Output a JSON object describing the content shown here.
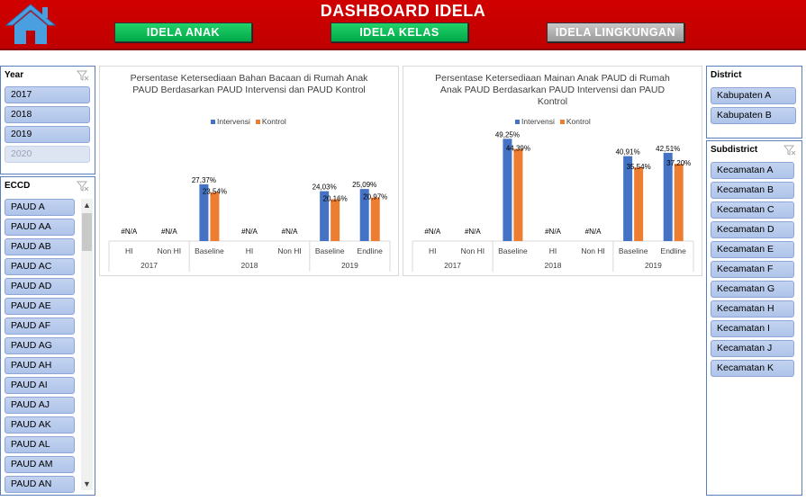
{
  "header": {
    "title": "DASHBOARD IDELA",
    "nav": [
      {
        "label": "IDELA ANAK",
        "style": "green"
      },
      {
        "label": "IDELA KELAS",
        "style": "green"
      },
      {
        "label": "IDELA LINGKUNGAN",
        "style": "grey"
      }
    ]
  },
  "colors": {
    "intervensi": "#4472c4",
    "kontrol": "#ed7d31",
    "header": "#c00000"
  },
  "year_slicer": {
    "title": "Year",
    "items": [
      {
        "label": "2017",
        "enabled": true
      },
      {
        "label": "2018",
        "enabled": true
      },
      {
        "label": "2019",
        "enabled": true
      },
      {
        "label": "2020",
        "enabled": false
      }
    ]
  },
  "eccd_slicer": {
    "title": "ECCD",
    "items": [
      "PAUD A",
      "PAUD AA",
      "PAUD AB",
      "PAUD AC",
      "PAUD AD",
      "PAUD AE",
      "PAUD AF",
      "PAUD AG",
      "PAUD AH",
      "PAUD AI",
      "PAUD AJ",
      "PAUD AK",
      "PAUD AL",
      "PAUD AM",
      "PAUD AN"
    ]
  },
  "district_slicer": {
    "title": "District",
    "items": [
      "Kabupaten A",
      "Kabupaten B"
    ]
  },
  "subdistrict_slicer": {
    "title": "Subdistrict",
    "items": [
      "Kecamatan A",
      "Kecamatan B",
      "Kecamatan C",
      "Kecamatan D",
      "Kecamatan E",
      "Kecamatan F",
      "Kecamatan G",
      "Kecamatan H",
      "Kecamatan I",
      "Kecamatan J",
      "Kecamatan K"
    ]
  },
  "chart_data": [
    {
      "type": "bar",
      "title": "Persentase Ketersediaan Bahan Bacaan di Rumah Anak PAUD Berdasarkan PAUD Intervensi dan PAUD Kontrol",
      "legend": [
        "Intervensi",
        "Kontrol"
      ],
      "groups": [
        {
          "year": "2017",
          "categories": [
            "HI",
            "Non HI"
          ]
        },
        {
          "year": "2018",
          "categories": [
            "Baseline",
            "HI",
            "Non HI"
          ]
        },
        {
          "year": "2019",
          "categories": [
            "Baseline",
            "Endline"
          ]
        }
      ],
      "categories": [
        "HI",
        "Non HI",
        "Baseline",
        "HI",
        "Non HI",
        "Baseline",
        "Endline"
      ],
      "series": [
        {
          "name": "Intervensi",
          "values": [
            null,
            null,
            27.37,
            null,
            null,
            24.03,
            25.09
          ],
          "labels": [
            "#N/A",
            "#N/A",
            "27,37%",
            "#N/A",
            "#N/A",
            "24,03%",
            "25,09%"
          ]
        },
        {
          "name": "Kontrol",
          "values": [
            null,
            null,
            23.54,
            null,
            null,
            20.16,
            20.97
          ],
          "labels": [
            "",
            "",
            "23,54%",
            "",
            "",
            "20,16%",
            "20,97%"
          ]
        }
      ],
      "ylim": [
        0,
        100
      ]
    },
    {
      "type": "bar",
      "title": "Persentase Ketersediaan Mainan Anak PAUD di Rumah Anak PAUD Berdasarkan PAUD Intervensi dan PAUD Kontrol",
      "legend": [
        "Intervensi",
        "Kontrol"
      ],
      "groups": [
        {
          "year": "2017",
          "categories": [
            "HI",
            "Non HI"
          ]
        },
        {
          "year": "2018",
          "categories": [
            "Baseline",
            "HI",
            "Non HI"
          ]
        },
        {
          "year": "2019",
          "categories": [
            "Baseline",
            "Endline"
          ]
        }
      ],
      "categories": [
        "HI",
        "Non HI",
        "Baseline",
        "HI",
        "Non HI",
        "Baseline",
        "Endline"
      ],
      "series": [
        {
          "name": "Intervensi",
          "values": [
            null,
            null,
            49.25,
            null,
            null,
            40.91,
            42.51
          ],
          "labels": [
            "#N/A",
            "#N/A",
            "49,25%",
            "#N/A",
            "#N/A",
            "40,91%",
            "42,51%"
          ]
        },
        {
          "name": "Kontrol",
          "values": [
            null,
            null,
            44.39,
            null,
            null,
            35.54,
            37.2
          ],
          "labels": [
            "",
            "",
            "44,39%",
            "",
            "",
            "35,54%",
            "37,20%"
          ]
        }
      ],
      "ylim": [
        0,
        100
      ]
    }
  ]
}
